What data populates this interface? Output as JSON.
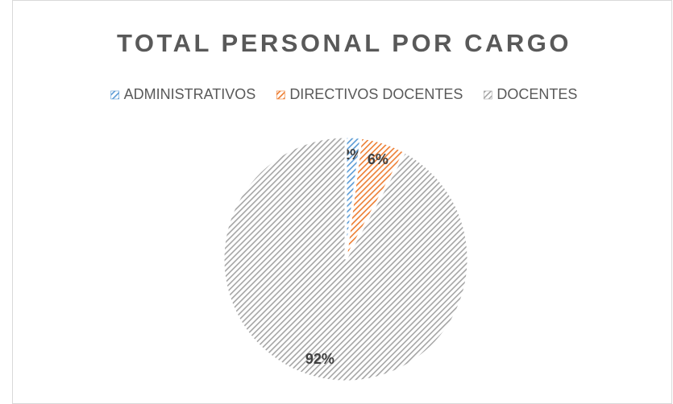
{
  "chart_data": {
    "type": "pie",
    "title": "TOTAL PERSONAL POR CARGO",
    "categories": [
      "ADMINISTRATIVOS",
      "DIRECTIVOS DOCENTES",
      "DOCENTES"
    ],
    "values": [
      2,
      6,
      92
    ],
    "value_labels": [
      "2%",
      "6%",
      "92%"
    ],
    "colors": [
      "#5b9bd5",
      "#ed7d31",
      "#a5a5a5"
    ],
    "legend": "top"
  }
}
